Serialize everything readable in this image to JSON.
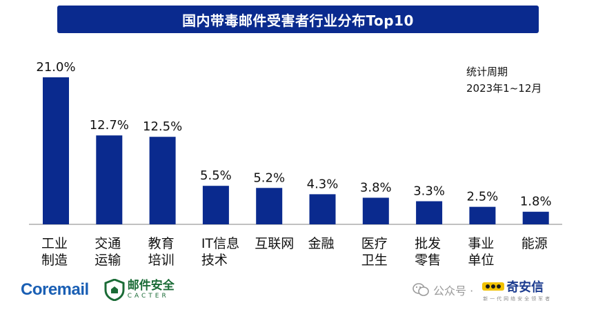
{
  "title": "国内带毒邮件受害者行业分布Top10",
  "period": {
    "label": "统计周期",
    "range": "2023年1~12月"
  },
  "colors": {
    "bar": "#0a2a8e",
    "title_bg": "#0a2a8e",
    "axis": "#9a9a9a"
  },
  "chart_data": {
    "type": "bar",
    "title": "国内带毒邮件受害者行业分布Top10",
    "categories": [
      [
        "工业",
        "制造"
      ],
      [
        "交通",
        "运输"
      ],
      [
        "教育",
        "培训"
      ],
      [
        "IT信息",
        "技术"
      ],
      [
        "互联网"
      ],
      [
        "金融"
      ],
      [
        "医疗",
        "卫生"
      ],
      [
        "批发",
        "零售"
      ],
      [
        "事业",
        "单位"
      ],
      [
        "能源"
      ]
    ],
    "values": [
      21.0,
      12.7,
      12.5,
      5.5,
      5.2,
      4.3,
      3.8,
      3.3,
      2.5,
      1.8
    ],
    "value_labels": [
      "21.0%",
      "12.7%",
      "12.5%",
      "5.5%",
      "5.2%",
      "4.3%",
      "3.8%",
      "3.3%",
      "2.5%",
      "1.8%"
    ],
    "ylim": [
      0,
      21.0
    ],
    "xlabel": "",
    "ylabel": "",
    "grid": false,
    "legend": "none"
  },
  "footer": {
    "brand_left": "Coremail",
    "cacter_cn": "邮件安全",
    "cacter_en": "CACTER",
    "wechat_label": "公众号 ·",
    "qax_name": "奇安信",
    "qax_slogan": "新一代网络安全领军者"
  },
  "icons": [
    "shield-logo-icon",
    "wechat-icon",
    "qax-logo-icon"
  ]
}
